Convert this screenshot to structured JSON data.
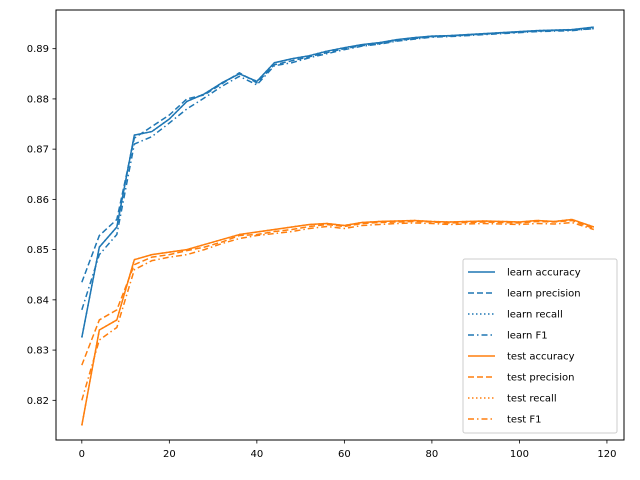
{
  "chart_data": {
    "type": "line",
    "title": "",
    "xlabel": "",
    "ylabel": "",
    "xlim": [
      -5.9,
      123.9
    ],
    "ylim": [
      0.8121,
      0.8977
    ],
    "xticks": [
      0,
      20,
      40,
      60,
      80,
      100,
      120
    ],
    "yticks": [
      0.82,
      0.83,
      0.84,
      0.85,
      0.86,
      0.87,
      0.88,
      0.89
    ],
    "tick_labels_x": [
      "0",
      "20",
      "40",
      "60",
      "80",
      "100",
      "120"
    ],
    "tick_labels_y": [
      "0.82",
      "0.83",
      "0.84",
      "0.85",
      "0.86",
      "0.87",
      "0.88",
      "0.89"
    ],
    "grid": false,
    "legend_position": "lower-right",
    "colors": {
      "learn": "#1f77b4",
      "test": "#ff7f0e"
    },
    "x": [
      0,
      4,
      8,
      12,
      16,
      20,
      24,
      28,
      32,
      36,
      40,
      44,
      48,
      52,
      56,
      60,
      64,
      68,
      72,
      76,
      80,
      84,
      88,
      92,
      96,
      100,
      104,
      108,
      112,
      117
    ],
    "series": [
      {
        "name": "learn accuracy",
        "group": "learn",
        "dash": "solid",
        "values": [
          0.8325,
          0.8505,
          0.8545,
          0.8728,
          0.8735,
          0.876,
          0.8795,
          0.881,
          0.8832,
          0.885,
          0.8835,
          0.8872,
          0.888,
          0.8886,
          0.8895,
          0.8902,
          0.8908,
          0.8912,
          0.8918,
          0.8922,
          0.8925,
          0.8926,
          0.8928,
          0.893,
          0.8932,
          0.8934,
          0.8936,
          0.8937,
          0.8938,
          0.8943
        ]
      },
      {
        "name": "learn precision",
        "group": "learn",
        "dash": "dashed",
        "values": [
          0.8435,
          0.8528,
          0.856,
          0.8722,
          0.8745,
          0.8768,
          0.88,
          0.8808,
          0.883,
          0.8852,
          0.8832,
          0.8868,
          0.8876,
          0.8884,
          0.8892,
          0.89,
          0.8906,
          0.891,
          0.8916,
          0.892,
          0.8924,
          0.8925,
          0.8927,
          0.8929,
          0.8931,
          0.8933,
          0.8935,
          0.8936,
          0.8937,
          0.894
        ]
      },
      {
        "name": "learn recall",
        "group": "learn",
        "dash": "dotted",
        "values": [
          0.8325,
          0.8505,
          0.8545,
          0.8728,
          0.8735,
          0.876,
          0.8795,
          0.881,
          0.8832,
          0.885,
          0.8835,
          0.8872,
          0.888,
          0.8886,
          0.8895,
          0.8902,
          0.8908,
          0.8912,
          0.8918,
          0.8922,
          0.8925,
          0.8926,
          0.8928,
          0.893,
          0.8932,
          0.8934,
          0.8936,
          0.8937,
          0.8938,
          0.8943
        ]
      },
      {
        "name": "learn F1",
        "group": "learn",
        "dash": "dashdot",
        "values": [
          0.838,
          0.849,
          0.853,
          0.871,
          0.8725,
          0.8752,
          0.878,
          0.8802,
          0.8825,
          0.8845,
          0.8828,
          0.8866,
          0.8872,
          0.8882,
          0.889,
          0.8898,
          0.8905,
          0.8909,
          0.8915,
          0.8919,
          0.8923,
          0.8924,
          0.8926,
          0.8928,
          0.893,
          0.8932,
          0.8934,
          0.8935,
          0.8936,
          0.894
        ]
      },
      {
        "name": "test accuracy",
        "group": "test",
        "dash": "solid",
        "values": [
          0.815,
          0.834,
          0.836,
          0.848,
          0.849,
          0.8495,
          0.85,
          0.851,
          0.852,
          0.853,
          0.8535,
          0.854,
          0.8545,
          0.855,
          0.8552,
          0.8548,
          0.8554,
          0.8556,
          0.8557,
          0.8558,
          0.8556,
          0.8555,
          0.8556,
          0.8557,
          0.8556,
          0.8555,
          0.8558,
          0.8556,
          0.856,
          0.8545
        ]
      },
      {
        "name": "test precision",
        "group": "test",
        "dash": "dashed",
        "values": [
          0.827,
          0.836,
          0.838,
          0.847,
          0.8485,
          0.849,
          0.8498,
          0.8505,
          0.8515,
          0.8528,
          0.853,
          0.8536,
          0.854,
          0.8546,
          0.855,
          0.8546,
          0.8552,
          0.8554,
          0.8555,
          0.8556,
          0.8555,
          0.8553,
          0.8554,
          0.8555,
          0.8554,
          0.8553,
          0.8556,
          0.8555,
          0.8558,
          0.8542
        ]
      },
      {
        "name": "test recall",
        "group": "test",
        "dash": "dotted",
        "values": [
          0.815,
          0.834,
          0.836,
          0.848,
          0.849,
          0.8495,
          0.85,
          0.851,
          0.852,
          0.853,
          0.8535,
          0.854,
          0.8545,
          0.855,
          0.8552,
          0.8548,
          0.8554,
          0.8556,
          0.8557,
          0.8558,
          0.8556,
          0.8555,
          0.8556,
          0.8557,
          0.8556,
          0.8555,
          0.8558,
          0.8556,
          0.856,
          0.8545
        ]
      },
      {
        "name": "test F1",
        "group": "test",
        "dash": "dashdot",
        "values": [
          0.82,
          0.832,
          0.8345,
          0.846,
          0.8478,
          0.8485,
          0.849,
          0.85,
          0.8512,
          0.8522,
          0.8528,
          0.8532,
          0.8536,
          0.8542,
          0.8546,
          0.8542,
          0.8548,
          0.855,
          0.8552,
          0.8553,
          0.8552,
          0.855,
          0.8551,
          0.8552,
          0.8551,
          0.855,
          0.8552,
          0.8551,
          0.8554,
          0.854
        ]
      }
    ]
  }
}
